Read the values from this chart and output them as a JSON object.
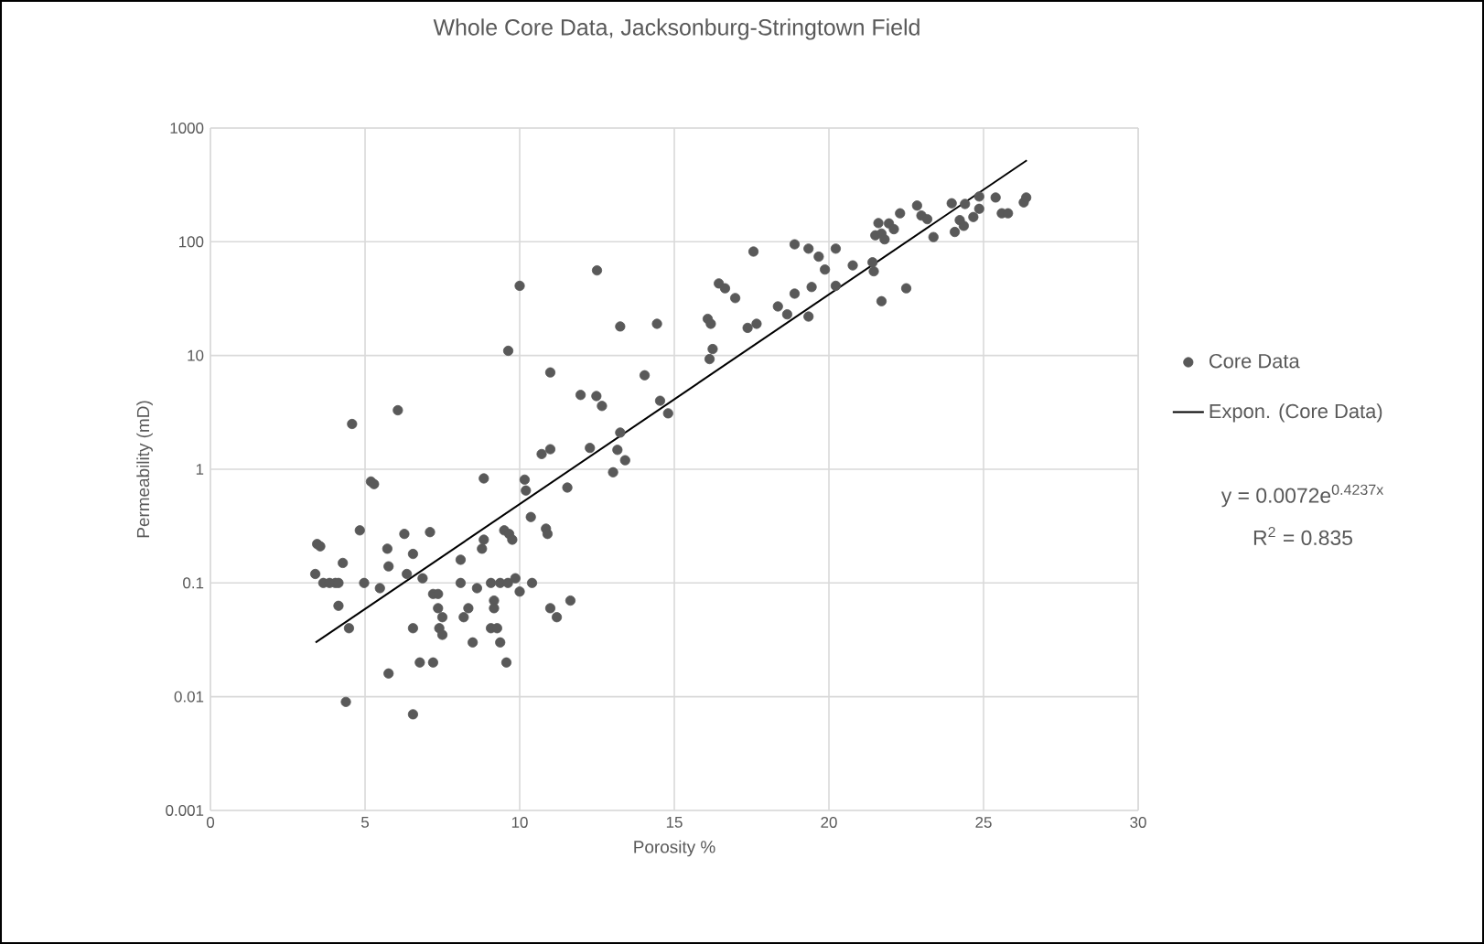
{
  "chart_data": {
    "type": "scatter",
    "title": "Whole Core Data, Jacksonburg-Stringtown Field",
    "xlabel": "Porosity %",
    "ylabel": "Permeability (mD)",
    "xlim": [
      0,
      30
    ],
    "xticks": [
      0,
      5,
      10,
      15,
      20,
      25,
      30
    ],
    "ylim": [
      0.001,
      1000
    ],
    "yticks": [
      0.001,
      0.01,
      0.1,
      1,
      10,
      100,
      1000
    ],
    "log": "y",
    "grid": true,
    "legend": "right",
    "annotations": [
      "y = 0.0072e$^{0.4237x}$",
      "R$^{2}$ = 0.835"
    ],
    "series": [
      {
        "name": "Core Data",
        "color": "#595959",
        "x": [
          3.39,
          3.45,
          3.55,
          3.65,
          3.85,
          4.04,
          4.14,
          4.28,
          4.14,
          4.48,
          4.38,
          4.83,
          4.97,
          5.19,
          5.29,
          5.48,
          5.72,
          5.76,
          5.76,
          6.27,
          6.35,
          6.55,
          6.55,
          6.55,
          6.77,
          6.86,
          7.1,
          7.2,
          7.2,
          7.36,
          7.36,
          7.4,
          7.5,
          7.5,
          8.09,
          8.09,
          8.19,
          8.34,
          8.48,
          8.62,
          8.84,
          8.78,
          8.84,
          9.07,
          9.17,
          9.17,
          9.07,
          9.27,
          9.37,
          9.37,
          9.5,
          9.66,
          9.76,
          9.57,
          9.62,
          9.86,
          10.0,
          10.16,
          10.2,
          10.36,
          10.4,
          10.71,
          10.99,
          10.85,
          10.9,
          10.99,
          11.2,
          11.54,
          11.64,
          12.27,
          13.02,
          13.16,
          13.25,
          13.41,
          4.58,
          6.06,
          9.63,
          10.0,
          10.99,
          11.97,
          12.48,
          12.66,
          12.5,
          13.25,
          14.04,
          14.44,
          14.54,
          14.8,
          16.14,
          16.24,
          16.08,
          16.18,
          16.44,
          16.64,
          16.97,
          17.37,
          17.66,
          17.56,
          18.35,
          18.65,
          18.89,
          18.89,
          19.34,
          19.44,
          19.34,
          19.67,
          19.87,
          20.22,
          20.22,
          20.77,
          21.41,
          21.45,
          21.6,
          21.5,
          21.7,
          21.8,
          21.7,
          21.94,
          22.1,
          22.3,
          22.5,
          22.85,
          22.99,
          23.18,
          23.38,
          23.97,
          24.07,
          24.23,
          24.36,
          24.4,
          24.67,
          24.86,
          24.86,
          25.39,
          25.59,
          25.79,
          26.3,
          26.38
        ],
        "values": [
          0.12,
          0.22,
          0.21,
          0.1,
          0.1,
          0.1,
          0.1,
          0.15,
          0.063,
          0.04,
          0.009,
          0.29,
          0.1,
          0.78,
          0.74,
          0.09,
          0.2,
          0.14,
          0.016,
          0.27,
          0.12,
          0.18,
          0.04,
          0.007,
          0.02,
          0.11,
          0.28,
          0.02,
          0.08,
          0.08,
          0.06,
          0.04,
          0.035,
          0.05,
          0.16,
          0.1,
          0.05,
          0.06,
          0.03,
          0.09,
          0.83,
          0.2,
          0.24,
          0.1,
          0.07,
          0.06,
          0.04,
          0.04,
          0.03,
          0.1,
          0.29,
          0.27,
          0.24,
          0.02,
          0.1,
          0.11,
          0.084,
          0.81,
          0.65,
          0.38,
          0.1,
          1.36,
          1.5,
          0.3,
          0.27,
          0.06,
          0.05,
          0.69,
          0.07,
          1.54,
          0.94,
          1.48,
          2.1,
          1.2,
          2.5,
          3.3,
          11,
          41,
          7.1,
          4.5,
          4.4,
          3.6,
          56,
          18,
          6.7,
          19,
          4,
          3.1,
          9.3,
          11.4,
          21,
          19,
          43,
          39,
          32,
          17.5,
          19,
          82,
          27,
          23,
          35,
          95,
          87,
          40,
          22,
          74,
          57,
          87,
          41,
          62,
          66,
          55,
          146,
          114,
          118,
          105,
          30,
          145,
          129,
          178,
          39,
          208,
          170,
          158,
          110,
          218,
          122,
          155,
          138,
          215,
          165,
          250,
          195,
          245,
          178,
          178,
          222,
          245
        ]
      },
      {
        "name": "Expon. (Core Data)",
        "type": "line",
        "color": "#000000",
        "x": [
          3.4,
          26.4
        ],
        "values": [
          0.03,
          520
        ]
      }
    ]
  }
}
